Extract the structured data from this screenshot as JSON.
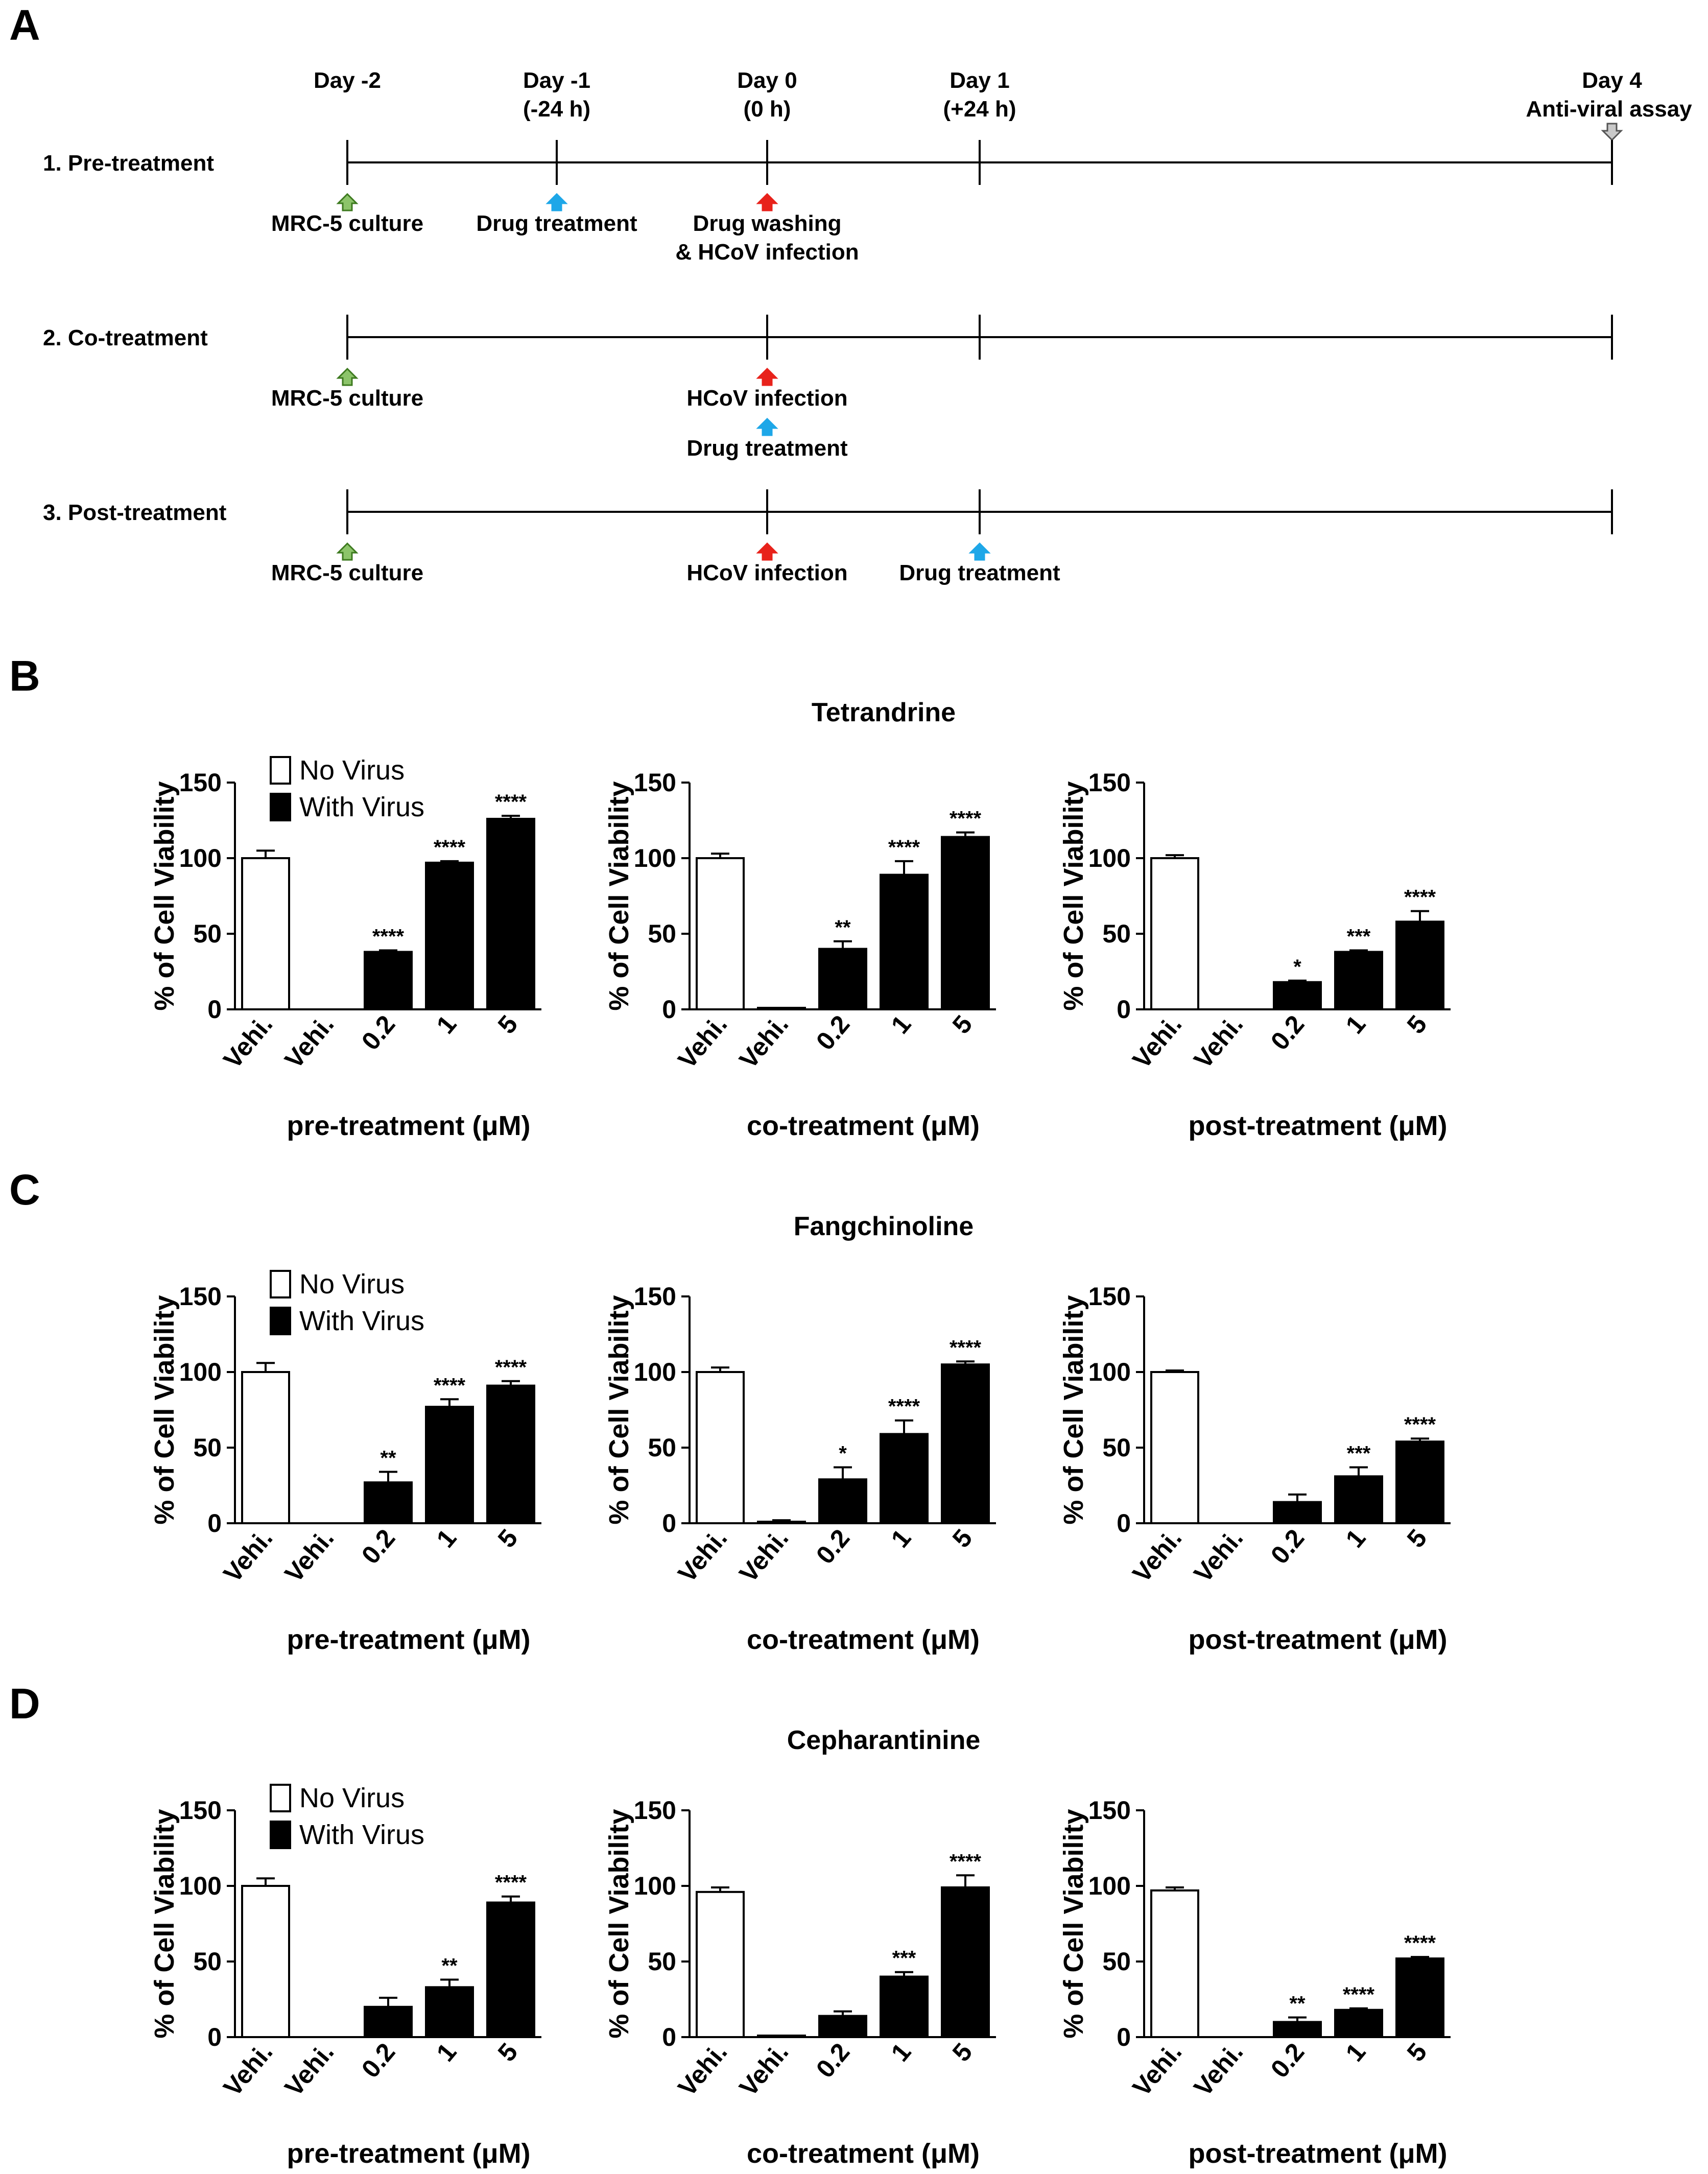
{
  "figure": {
    "panels": [
      "A",
      "B",
      "C",
      "D"
    ]
  },
  "timeline": {
    "days": [
      {
        "label": "Day -2",
        "sub": ""
      },
      {
        "label": "Day -1",
        "sub": "(-24 h)"
      },
      {
        "label": "Day 0",
        "sub": "(0 h)"
      },
      {
        "label": "Day 1",
        "sub": "(+24 h)"
      },
      {
        "label": "Day 4",
        "sub": "Anti-viral assay"
      }
    ],
    "rows": [
      {
        "label": "1. Pre-treatment",
        "events": [
          {
            "day": 0,
            "color": "green",
            "text": [
              "MRC-5 culture"
            ]
          },
          {
            "day": 1,
            "color": "blue",
            "text": [
              "Drug treatment"
            ]
          },
          {
            "day": 2,
            "color": "red",
            "text": [
              "Drug washing",
              "& HCoV infection"
            ]
          }
        ]
      },
      {
        "label": "2. Co-treatment",
        "events": [
          {
            "day": 0,
            "color": "green",
            "text": [
              "MRC-5 culture"
            ]
          },
          {
            "day": 2,
            "color": "red",
            "text": [
              "HCoV infection"
            ]
          },
          {
            "day": 2,
            "color": "blue",
            "text": [
              "Drug treatment"
            ],
            "lower": true
          }
        ]
      },
      {
        "label": "3. Post-treatment",
        "events": [
          {
            "day": 0,
            "color": "green",
            "text": [
              "MRC-5 culture"
            ]
          },
          {
            "day": 2,
            "color": "red",
            "text": [
              "HCoV infection"
            ]
          },
          {
            "day": 3,
            "color": "blue",
            "text": [
              "Drug treatment"
            ]
          }
        ]
      }
    ],
    "colors": {
      "green": "#8cc46a",
      "blue": "#1ea7e8",
      "red": "#e8221b",
      "gray": "#c9c9c9"
    }
  },
  "legend": {
    "no_virus": "No Virus",
    "with_virus": "With Virus"
  },
  "chart_data": [
    {
      "type": "bar",
      "panel": "B",
      "drug": "Tetrandrine",
      "ylabel": "% of Cell Viability",
      "ylim": [
        0,
        150
      ],
      "yticks": [
        0,
        50,
        100,
        150
      ],
      "categories": [
        "Vehi.",
        "Vehi.",
        "0.2",
        "1",
        "5"
      ],
      "charts": [
        {
          "xlabel": "pre-treatment (μM)",
          "values": [
            100,
            0,
            38,
            97,
            126
          ],
          "errors": [
            5,
            0,
            1,
            1,
            2
          ],
          "sig": [
            "",
            "",
            "****",
            "****",
            "****"
          ]
        },
        {
          "xlabel": "co-treatment (μM)",
          "values": [
            100,
            1,
            40,
            89,
            114
          ],
          "errors": [
            3,
            0,
            5,
            9,
            3
          ],
          "sig": [
            "",
            "",
            "**",
            "****",
            "****"
          ]
        },
        {
          "xlabel": "post-treatment (μM)",
          "values": [
            100,
            0,
            18,
            38,
            58
          ],
          "errors": [
            2,
            0,
            1,
            1,
            7
          ],
          "sig": [
            "",
            "",
            "*",
            "***",
            "****"
          ]
        }
      ]
    },
    {
      "type": "bar",
      "panel": "C",
      "drug": "Fangchinoline",
      "ylabel": "% of Cell Viability",
      "ylim": [
        0,
        150
      ],
      "yticks": [
        0,
        50,
        100,
        150
      ],
      "categories": [
        "Vehi.",
        "Vehi.",
        "0.2",
        "1",
        "5"
      ],
      "charts": [
        {
          "xlabel": "pre-treatment (μM)",
          "values": [
            100,
            0,
            27,
            77,
            91
          ],
          "errors": [
            6,
            0,
            7,
            5,
            3
          ],
          "sig": [
            "",
            "",
            "**",
            "****",
            "****"
          ]
        },
        {
          "xlabel": "co-treatment (μM)",
          "values": [
            100,
            1,
            29,
            59,
            105
          ],
          "errors": [
            3,
            1,
            8,
            9,
            2
          ],
          "sig": [
            "",
            "",
            "*",
            "****",
            "****"
          ]
        },
        {
          "xlabel": "post-treatment (μM)",
          "values": [
            100,
            0,
            14,
            31,
            54
          ],
          "errors": [
            1,
            0,
            5,
            6,
            2
          ],
          "sig": [
            "",
            "",
            "",
            "***",
            "****"
          ]
        }
      ]
    },
    {
      "type": "bar",
      "panel": "D",
      "drug": "Cepharantinine",
      "ylabel": "% of Cell Viability",
      "ylim": [
        0,
        150
      ],
      "yticks": [
        0,
        50,
        100,
        150
      ],
      "categories": [
        "Vehi.",
        "Vehi.",
        "0.2",
        "1",
        "5"
      ],
      "charts": [
        {
          "xlabel": "pre-treatment (μM)",
          "values": [
            100,
            0,
            20,
            33,
            89
          ],
          "errors": [
            5,
            0,
            6,
            5,
            4
          ],
          "sig": [
            "",
            "",
            "",
            "**",
            "****"
          ]
        },
        {
          "xlabel": "co-treatment (μM)",
          "values": [
            96,
            1,
            14,
            40,
            99
          ],
          "errors": [
            3,
            0,
            3,
            3,
            8
          ],
          "sig": [
            "",
            "",
            "",
            "***",
            "****"
          ]
        },
        {
          "xlabel": "post-treatment (μM)",
          "values": [
            97,
            0,
            10,
            18,
            52
          ],
          "errors": [
            2,
            0,
            3,
            1,
            1
          ],
          "sig": [
            "",
            "",
            "**",
            "****",
            "****"
          ]
        }
      ]
    }
  ]
}
